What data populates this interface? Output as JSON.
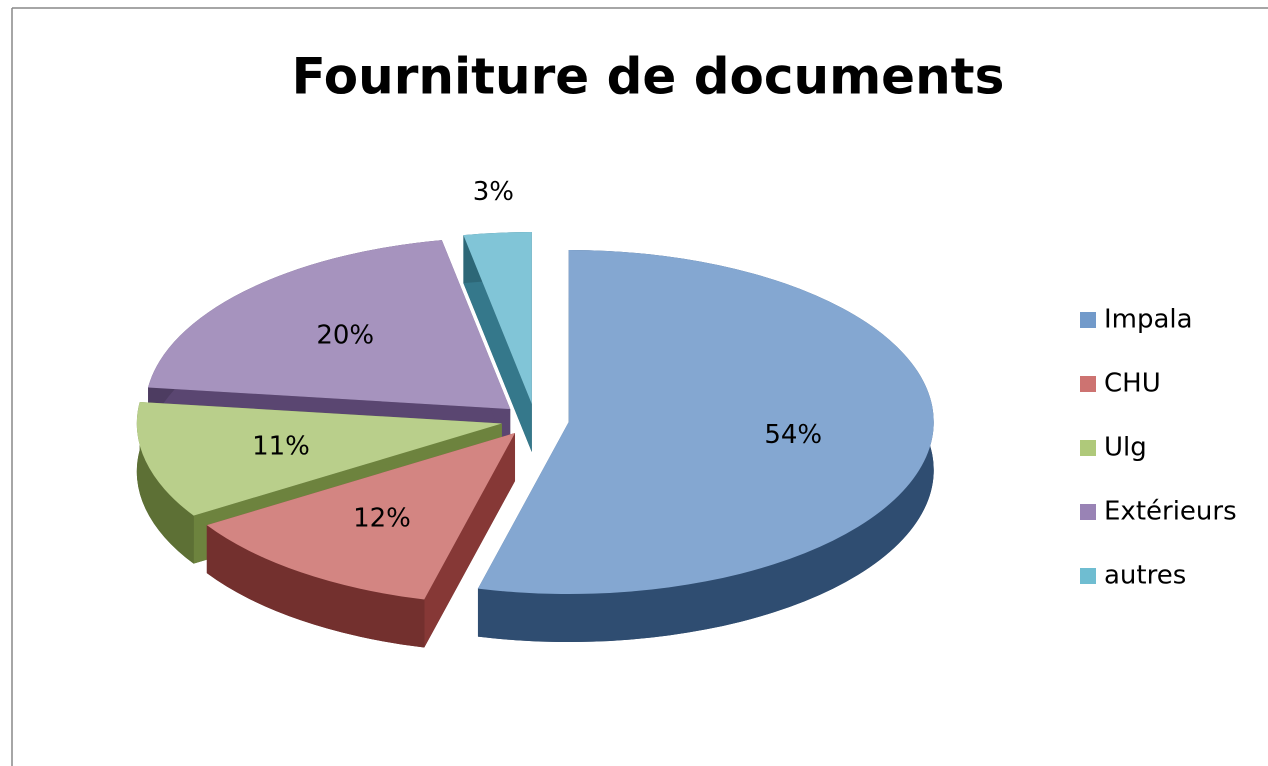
{
  "chart_data": {
    "type": "pie",
    "title": "Fourniture de documents",
    "categories": [
      "Impala",
      "CHU",
      "Ulg",
      "Extérieurs",
      "autres"
    ],
    "values": [
      54,
      12,
      11,
      20,
      3
    ],
    "value_labels": [
      "54%",
      "12%",
      "11%",
      "20%",
      "3%"
    ],
    "colors": [
      "#4f81bd",
      "#c0504d",
      "#9bbb59",
      "#8064a2",
      "#4bacc6"
    ],
    "legend": "right"
  }
}
